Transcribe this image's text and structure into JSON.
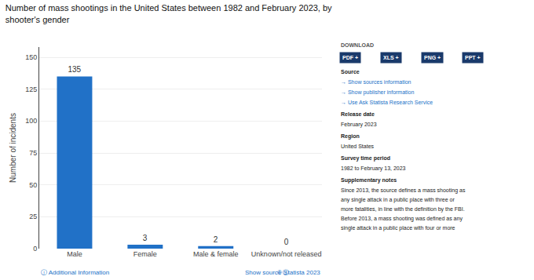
{
  "chart_data": {
    "type": "bar",
    "title": "Number of mass shootings in the United States between 1982 and February 2023, by\nshooter's gender",
    "ylabel": "Number of incidents",
    "categories": [
      "Male",
      "Female",
      "Male & female",
      "Unknown/not released"
    ],
    "values": [
      135,
      3,
      2,
      0
    ],
    "color": "#2171c7",
    "ylim": [
      0,
      158
    ],
    "yticks": [
      0,
      25,
      50,
      75,
      100,
      125,
      150
    ],
    "grid": true,
    "data_labels": true,
    "annotations": [
      "ⓘ Additional Information",
      "Show source ⓘ",
      "© Statista 2023",
      "DOWNLOAD",
      "PDF +",
      "XLS +",
      "PNG +",
      "PPT +",
      "Source",
      "→ Show sources information",
      "→ Show publisher information",
      "→ Use Ask Statista Research Service",
      "Release date",
      "February 2023",
      "Region",
      "United States",
      "Survey time period",
      "1982 to February 13, 2023",
      "Supplementary notes",
      "Since 2013, the source defines a mass shooting as",
      "any single attack in a public place with three or",
      "more fatalities, in line with the definition by the FBI.",
      "Before 2013, a mass shooting was defined as any",
      "single attack in a public place with four or more"
    ]
  }
}
